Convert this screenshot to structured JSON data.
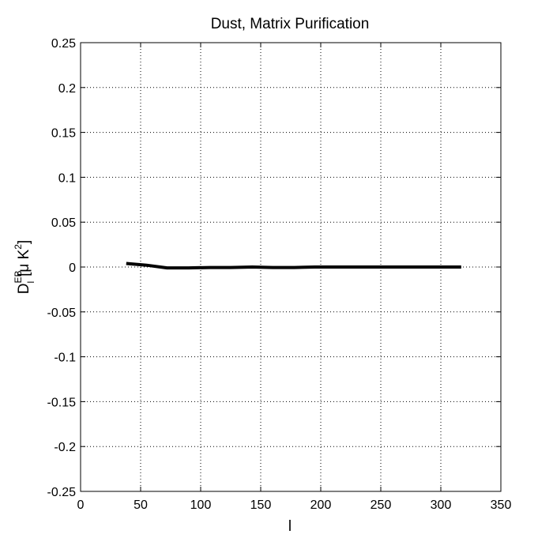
{
  "chart_data": {
    "type": "line",
    "title": "Dust, Matrix Purification",
    "xlabel": "l",
    "ylabel": {
      "base": "D",
      "sub": "l",
      "sup": "EB",
      "units_prefix": "[μ K",
      "units_sup": "2",
      "units_suffix": "]"
    },
    "xlim": [
      0,
      350
    ],
    "ylim": [
      -0.25,
      0.25
    ],
    "xticks": [
      0,
      50,
      100,
      150,
      200,
      250,
      300,
      350
    ],
    "xtick_labels": [
      "0",
      "50",
      "100",
      "150",
      "200",
      "250",
      "300",
      "350"
    ],
    "yticks": [
      0.25,
      0.2,
      0.15,
      0.1,
      0.05,
      0,
      -0.05,
      -0.1,
      -0.15,
      -0.2,
      -0.25
    ],
    "ytick_labels": [
      "0.25",
      "0.2",
      "0.15",
      "0.1",
      "0.05",
      "0",
      "-0.05",
      "-0.1",
      "-0.15",
      "-0.2",
      "-0.25"
    ],
    "grid": true,
    "series": [
      {
        "color": "#000000",
        "x": [
          38,
          55,
          72,
          90,
          108,
          125,
          143,
          160,
          178,
          195,
          213,
          230,
          248,
          265,
          283,
          300,
          317
        ],
        "y": [
          0.004,
          0.002,
          -0.001,
          -0.001,
          -0.0005,
          -0.0005,
          0.0,
          -0.0005,
          -0.0005,
          0.0,
          0.0,
          0.0,
          0.0,
          0.0,
          0.0,
          0.0,
          0.0
        ]
      }
    ]
  }
}
